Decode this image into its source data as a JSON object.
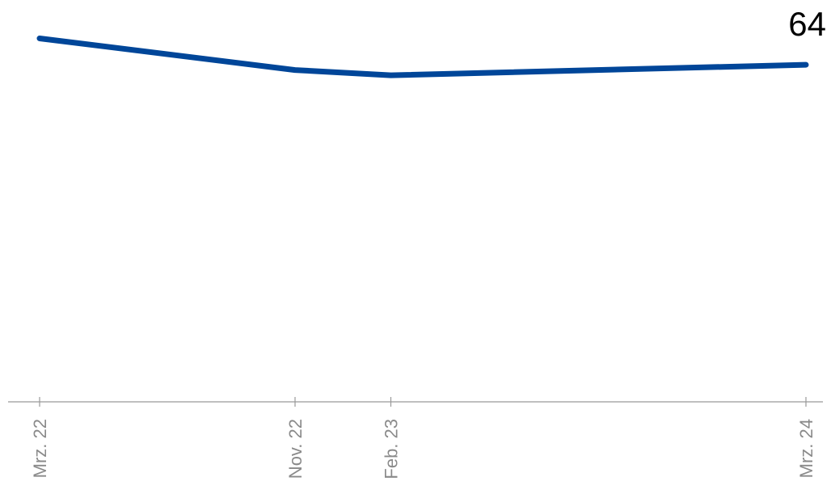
{
  "chart_data": {
    "type": "line",
    "title": "",
    "xlabel": "",
    "ylabel": "",
    "x": [
      "2022-03",
      "2022-11",
      "2023-02",
      "2024-03"
    ],
    "tick_labels": [
      "Mrz. 22",
      "Nov. 22",
      "Feb. 23",
      "Mrz. 24"
    ],
    "series": [
      {
        "values": [
          69,
          63,
          62,
          64
        ]
      }
    ],
    "ylim": [
      0,
      72
    ],
    "end_label": "64",
    "grid": false,
    "legend": "none",
    "colors": {
      "line": "#004699",
      "axis": "#999999",
      "tick_label": "#8a8a8a",
      "end_label": "#000000"
    }
  }
}
